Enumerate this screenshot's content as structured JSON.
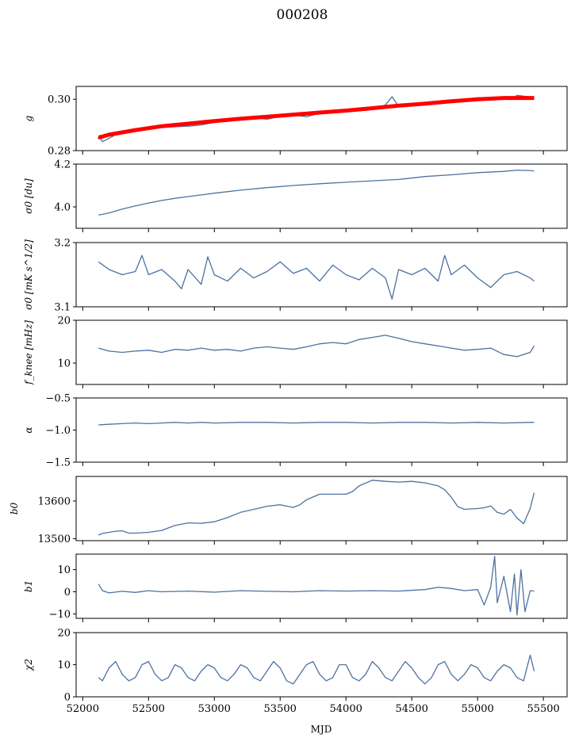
{
  "title": "000208",
  "xlabel": "MJD",
  "colors": {
    "series": "#4c72a0",
    "fit": "#ff0000",
    "axes": "#000000",
    "background": "#ffffff"
  },
  "chart_data": [
    {
      "type": "line",
      "ylabel": "g",
      "xlim": [
        51950,
        55680
      ],
      "ylim": [
        0.28,
        0.305
      ],
      "yticks": [
        0.28,
        0.3
      ],
      "ytick_labels": [
        "0.28",
        "0.30"
      ],
      "grid": false,
      "series": [
        {
          "color": "#4c72a0",
          "x": [
            52120,
            52150,
            52200,
            52250,
            52300,
            52400,
            52500,
            52600,
            52700,
            52800,
            52900,
            53000,
            53100,
            53200,
            53300,
            53400,
            53500,
            53600,
            53700,
            53800,
            53900,
            54000,
            54100,
            54200,
            54300,
            54350,
            54400,
            54500,
            54600,
            54700,
            54800,
            54900,
            55000,
            55100,
            55200,
            55250,
            55300,
            55350,
            55400,
            55430
          ],
          "values": [
            0.2858,
            0.2835,
            0.2848,
            0.2862,
            0.2872,
            0.2878,
            0.2884,
            0.289,
            0.2893,
            0.2895,
            0.29,
            0.291,
            0.2916,
            0.2925,
            0.2928,
            0.2922,
            0.2934,
            0.2938,
            0.2932,
            0.2946,
            0.295,
            0.2952,
            0.2955,
            0.296,
            0.2978,
            0.301,
            0.2972,
            0.298,
            0.2988,
            0.299,
            0.2996,
            0.3,
            0.3006,
            0.3004,
            0.3008,
            0.2998,
            0.3015,
            0.3012,
            0.3008,
            0.301
          ]
        },
        {
          "color": "#ff0000",
          "x": [
            52120,
            52130,
            52200,
            52400,
            52600,
            52800,
            53000,
            53200,
            53400,
            53600,
            53800,
            54000,
            54200,
            54400,
            54600,
            54800,
            55000,
            55200,
            55400,
            55430
          ],
          "values": [
            0.2855,
            0.2852,
            0.2862,
            0.288,
            0.2895,
            0.2905,
            0.2915,
            0.2924,
            0.2932,
            0.294,
            0.2948,
            0.2956,
            0.2965,
            0.2975,
            0.2983,
            0.2992,
            0.3,
            0.3005,
            0.3005,
            0.3005
          ]
        }
      ]
    },
    {
      "type": "line",
      "ylabel": "σ0 [du]",
      "xlim": [
        51950,
        55680
      ],
      "ylim": [
        3.9,
        4.2
      ],
      "yticks": [
        4.0,
        4.2
      ],
      "ytick_labels": [
        "4.0",
        "4.2"
      ],
      "grid": false,
      "series": [
        {
          "color": "#4c72a0",
          "x": [
            52120,
            52200,
            52300,
            52400,
            52500,
            52600,
            52700,
            52800,
            52900,
            53000,
            53200,
            53400,
            53600,
            53800,
            54000,
            54200,
            54400,
            54600,
            54800,
            55000,
            55200,
            55300,
            55400,
            55430
          ],
          "values": [
            3.962,
            3.972,
            3.99,
            4.005,
            4.018,
            4.03,
            4.04,
            4.048,
            4.056,
            4.064,
            4.078,
            4.09,
            4.1,
            4.108,
            4.115,
            4.122,
            4.128,
            4.142,
            4.15,
            4.16,
            4.166,
            4.172,
            4.17,
            4.168
          ]
        }
      ]
    },
    {
      "type": "line",
      "ylabel": "σ0 [mK s^1/2]",
      "xlim": [
        51950,
        55680
      ],
      "ylim": [
        3.1,
        3.2
      ],
      "yticks": [
        3.1,
        3.2
      ],
      "ytick_labels": [
        "3.1",
        "3.2"
      ],
      "grid": false,
      "series": [
        {
          "color": "#4c72a0",
          "x": [
            52120,
            52200,
            52300,
            52400,
            52450,
            52500,
            52600,
            52700,
            52750,
            52800,
            52900,
            52950,
            53000,
            53100,
            53200,
            53300,
            53400,
            53500,
            53600,
            53700,
            53800,
            53900,
            54000,
            54100,
            54200,
            54300,
            54350,
            54400,
            54500,
            54600,
            54700,
            54750,
            54800,
            54900,
            55000,
            55100,
            55200,
            55300,
            55400,
            55430
          ],
          "values": [
            3.17,
            3.158,
            3.15,
            3.155,
            3.18,
            3.15,
            3.158,
            3.14,
            3.128,
            3.158,
            3.135,
            3.178,
            3.15,
            3.14,
            3.16,
            3.145,
            3.155,
            3.17,
            3.152,
            3.16,
            3.14,
            3.165,
            3.15,
            3.142,
            3.16,
            3.145,
            3.112,
            3.158,
            3.15,
            3.16,
            3.14,
            3.18,
            3.15,
            3.165,
            3.145,
            3.13,
            3.15,
            3.155,
            3.145,
            3.14
          ]
        }
      ]
    },
    {
      "type": "line",
      "ylabel": "f_knee [mHz]",
      "xlim": [
        51950,
        55680
      ],
      "ylim": [
        5,
        20
      ],
      "yticks": [
        10,
        20
      ],
      "ytick_labels": [
        "10",
        "20"
      ],
      "grid": false,
      "series": [
        {
          "color": "#4c72a0",
          "x": [
            52120,
            52200,
            52300,
            52400,
            52500,
            52600,
            52700,
            52800,
            52900,
            53000,
            53100,
            53200,
            53300,
            53400,
            53500,
            53600,
            53700,
            53800,
            53900,
            54000,
            54100,
            54200,
            54300,
            54400,
            54500,
            54600,
            54700,
            54800,
            54900,
            55000,
            55100,
            55200,
            55300,
            55400,
            55430
          ],
          "values": [
            13.5,
            12.8,
            12.5,
            12.8,
            13.0,
            12.5,
            13.2,
            13.0,
            13.5,
            13.0,
            13.2,
            12.8,
            13.5,
            13.8,
            13.5,
            13.2,
            13.8,
            14.5,
            14.8,
            14.5,
            15.5,
            16.0,
            16.5,
            15.8,
            15.0,
            14.5,
            14.0,
            13.5,
            13.0,
            13.2,
            13.5,
            12.0,
            11.5,
            12.5,
            14.0
          ]
        }
      ]
    },
    {
      "type": "line",
      "ylabel": "α",
      "xlim": [
        51950,
        55680
      ],
      "ylim": [
        -1.5,
        -0.5
      ],
      "yticks": [
        -1.5,
        -1.0,
        -0.5
      ],
      "ytick_labels": [
        "−1.5",
        "−1.0",
        "−0.5"
      ],
      "grid": false,
      "series": [
        {
          "color": "#4c72a0",
          "x": [
            52120,
            52200,
            52300,
            52400,
            52500,
            52600,
            52700,
            52800,
            52900,
            53000,
            53200,
            53400,
            53600,
            53800,
            54000,
            54200,
            54400,
            54600,
            54800,
            55000,
            55200,
            55400,
            55430
          ],
          "values": [
            -0.92,
            -0.91,
            -0.9,
            -0.89,
            -0.9,
            -0.89,
            -0.88,
            -0.89,
            -0.88,
            -0.89,
            -0.88,
            -0.88,
            -0.89,
            -0.88,
            -0.88,
            -0.89,
            -0.88,
            -0.88,
            -0.89,
            -0.88,
            -0.89,
            -0.88,
            -0.88
          ]
        }
      ]
    },
    {
      "type": "line",
      "ylabel": "b0",
      "xlim": [
        51950,
        55680
      ],
      "ylim": [
        13495,
        13665
      ],
      "yticks": [
        13500,
        13600
      ],
      "ytick_labels": [
        "13500",
        "13600"
      ],
      "grid": false,
      "series": [
        {
          "color": "#4c72a0",
          "x": [
            52120,
            52150,
            52250,
            52300,
            52350,
            52400,
            52500,
            52600,
            52700,
            52800,
            52900,
            53000,
            53100,
            53200,
            53300,
            53400,
            53500,
            53600,
            53650,
            53700,
            53800,
            53900,
            54000,
            54050,
            54100,
            54200,
            54300,
            54400,
            54500,
            54600,
            54700,
            54750,
            54800,
            54850,
            54900,
            55000,
            55050,
            55100,
            55150,
            55200,
            55250,
            55300,
            55350,
            55400,
            55430
          ],
          "values": [
            13510,
            13514,
            13520,
            13521,
            13515,
            13515,
            13517,
            13522,
            13535,
            13542,
            13541,
            13545,
            13556,
            13570,
            13578,
            13586,
            13590,
            13583,
            13590,
            13603,
            13618,
            13618,
            13618,
            13625,
            13640,
            13655,
            13652,
            13650,
            13652,
            13648,
            13640,
            13630,
            13610,
            13585,
            13578,
            13580,
            13582,
            13587,
            13570,
            13565,
            13578,
            13555,
            13540,
            13580,
            13622
          ]
        }
      ]
    },
    {
      "type": "line",
      "ylabel": "b1",
      "xlim": [
        51950,
        55680
      ],
      "ylim": [
        -12,
        17
      ],
      "yticks": [
        -10,
        0,
        10
      ],
      "ytick_labels": [
        "−10",
        "0",
        "10"
      ],
      "grid": false,
      "series": [
        {
          "color": "#4c72a0",
          "x": [
            52120,
            52150,
            52200,
            52300,
            52400,
            52500,
            52600,
            52800,
            53000,
            53200,
            53400,
            53600,
            53800,
            54000,
            54200,
            54400,
            54600,
            54700,
            54800,
            54900,
            55000,
            55050,
            55100,
            55130,
            55150,
            55200,
            55250,
            55280,
            55300,
            55330,
            55360,
            55400,
            55430
          ],
          "values": [
            3.5,
            0.5,
            -0.5,
            0.2,
            -0.3,
            0.5,
            0.0,
            0.3,
            -0.2,
            0.5,
            0.2,
            0.0,
            0.5,
            0.3,
            0.5,
            0.3,
            1.0,
            2.0,
            1.5,
            0.5,
            1.0,
            -6.0,
            2.0,
            16.0,
            -5.0,
            7.0,
            -9.0,
            8.0,
            -10.5,
            10.0,
            -9.0,
            0.5,
            0.3
          ]
        }
      ]
    },
    {
      "type": "line",
      "ylabel": "χ2",
      "xlim": [
        51950,
        55680
      ],
      "ylim": [
        0,
        20
      ],
      "yticks": [
        0,
        10,
        20
      ],
      "ytick_labels": [
        "0",
        "10",
        "20"
      ],
      "xticks": [
        52000,
        52500,
        53000,
        53500,
        54000,
        54500,
        55000,
        55500
      ],
      "xtick_labels": [
        "52000",
        "52500",
        "53000",
        "53500",
        "54000",
        "54500",
        "55000",
        "55500"
      ],
      "grid": false,
      "series": [
        {
          "color": "#4c72a0",
          "x": [
            52120,
            52150,
            52200,
            52250,
            52300,
            52350,
            52400,
            52450,
            52500,
            52550,
            52600,
            52650,
            52700,
            52750,
            52800,
            52850,
            52900,
            52950,
            53000,
            53050,
            53100,
            53150,
            53200,
            53250,
            53300,
            53350,
            53400,
            53450,
            53500,
            53550,
            53600,
            53650,
            53700,
            53750,
            53800,
            53850,
            53900,
            53950,
            54000,
            54050,
            54100,
            54150,
            54200,
            54250,
            54300,
            54350,
            54400,
            54450,
            54500,
            54550,
            54600,
            54650,
            54700,
            54750,
            54800,
            54850,
            54900,
            54950,
            55000,
            55050,
            55100,
            55150,
            55200,
            55250,
            55300,
            55350,
            55400,
            55430
          ],
          "values": [
            6,
            5,
            9,
            11,
            7,
            5,
            6,
            10,
            11,
            7,
            5,
            6,
            10,
            9,
            6,
            5,
            8,
            10,
            9,
            6,
            5,
            7,
            10,
            9,
            6,
            5,
            8,
            11,
            9,
            5,
            4,
            7,
            10,
            11,
            7,
            5,
            6,
            10,
            10,
            6,
            5,
            7,
            11,
            9,
            6,
            5,
            8,
            11,
            9,
            6,
            4,
            6,
            10,
            11,
            7,
            5,
            7,
            10,
            9,
            6,
            5,
            8,
            10,
            9,
            6,
            5,
            13,
            8
          ]
        }
      ]
    }
  ]
}
